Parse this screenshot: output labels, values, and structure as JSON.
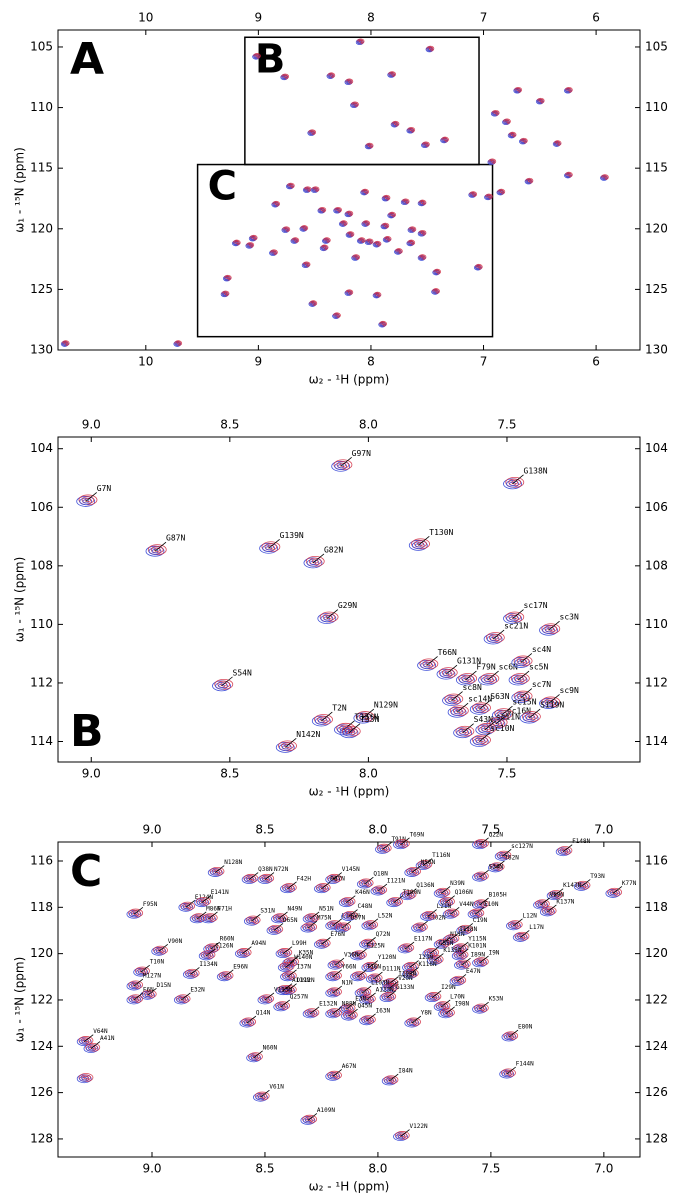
{
  "chart_data": [
    {
      "type": "contour",
      "panel_label": "A",
      "xlabel": "ω₂ - ¹H (ppm)",
      "ylabel": "ω₁ - ¹⁵N (ppm)",
      "xlim": [
        10.78,
        5.61
      ],
      "ylim": [
        103.6,
        130
      ],
      "xticks": [
        10,
        9,
        8,
        7,
        6
      ],
      "yticks": [
        105,
        110,
        115,
        120,
        125,
        130
      ],
      "colors": [
        "#3f4fd8",
        "#d0243a"
      ],
      "regions": [
        {
          "label": "B",
          "xlim": [
            9.12,
            7.04
          ],
          "ylim": [
            104.2,
            114.7
          ]
        },
        {
          "label": "C",
          "xlim": [
            9.54,
            6.92
          ],
          "ylim": [
            114.7,
            128.9
          ]
        }
      ],
      "x": [
        10.72,
        9.72,
        9.02,
        8.77,
        8.36,
        8.2,
        7.82,
        8.1,
        7.48,
        6.7,
        6.25,
        6.5,
        6.9,
        6.8,
        6.75,
        6.65,
        6.35,
        6.25,
        5.93,
        6.93,
        6.85,
        6.6,
        7.1,
        6.96,
        9.28,
        9.3,
        9.2,
        8.31,
        8.2,
        7.9,
        7.95,
        7.43,
        7.42,
        7.05,
        8.52,
        8.58,
        8.87,
        9.08,
        9.05,
        8.72,
        8.57,
        8.5,
        8.3,
        8.06,
        7.87,
        7.7,
        7.55,
        8.85,
        8.44,
        8.2,
        8.05,
        7.82,
        7.64,
        8.76,
        8.6,
        8.25,
        7.88,
        7.55,
        8.4,
        8.19,
        8.02,
        7.86,
        8.68,
        8.09,
        7.95,
        7.65,
        8.42,
        8.14,
        7.76,
        7.55,
        8.53,
        7.65,
        7.52,
        7.35,
        8.15,
        8.02,
        7.79
      ],
      "values": [
        129.5,
        129.5,
        105.8,
        107.5,
        107.4,
        107.9,
        107.3,
        104.6,
        105.2,
        108.6,
        108.6,
        109.5,
        110.5,
        111.2,
        112.3,
        112.8,
        113.0,
        115.6,
        115.8,
        114.5,
        117.0,
        116.1,
        117.2,
        117.4,
        124.1,
        125.4,
        121.2,
        127.2,
        125.3,
        127.9,
        125.5,
        125.2,
        123.6,
        123.2,
        126.2,
        123.0,
        122.0,
        121.4,
        120.8,
        116.5,
        116.8,
        116.8,
        118.5,
        117.0,
        117.5,
        117.8,
        117.9,
        118.0,
        118.5,
        118.8,
        119.6,
        118.9,
        120.1,
        120.1,
        120.0,
        119.6,
        119.8,
        120.4,
        121.0,
        120.5,
        121.1,
        120.9,
        121.0,
        121.0,
        121.3,
        121.2,
        121.6,
        122.4,
        121.9,
        122.4,
        112.1,
        111.9,
        113.1,
        112.7,
        109.8,
        113.2,
        111.4
      ]
    },
    {
      "type": "contour",
      "panel_label": "B",
      "xlabel": "ω₂ - ¹H (ppm)",
      "ylabel": "ω₁ - ¹⁵N (ppm)",
      "xlim": [
        9.12,
        7.02
      ],
      "ylim": [
        103.6,
        114.7
      ],
      "xticks": [
        {
          "value": 9,
          "label": "9.0"
        },
        8.5,
        {
          "value": 8,
          "label": "8.0"
        },
        7.5
      ],
      "yticks": [
        104,
        106,
        108,
        110,
        112,
        114
      ],
      "colors": [
        "#3f4fd8",
        "#d0243a"
      ],
      "labels": [
        "G97N",
        "G138N",
        "G7N",
        "G87N",
        "G139N",
        "G82N",
        "T130N",
        "G29N",
        "sc17N",
        "sc21N",
        "sc3N",
        "T66N",
        "G131N",
        "F79N",
        "sc6N",
        "sc4N",
        "sc5N",
        "sc7N",
        "sc9N",
        "S54N",
        "sc8N",
        "sc14N",
        "S63N",
        "sc15N",
        "sc16N",
        "S119N",
        "N129N",
        "T33*N",
        "T33N",
        "T2N",
        "N142N",
        "S43N",
        "sc11N",
        "sc10N"
      ],
      "x": [
        8.1,
        7.48,
        9.02,
        8.77,
        8.36,
        8.2,
        7.82,
        8.15,
        7.48,
        7.55,
        7.35,
        7.79,
        7.72,
        7.65,
        7.57,
        7.45,
        7.46,
        7.45,
        7.35,
        8.53,
        7.7,
        7.68,
        7.6,
        7.52,
        7.54,
        7.42,
        8.02,
        8.09,
        8.07,
        8.17,
        8.3,
        7.66,
        7.58,
        7.6
      ],
      "values": [
        104.6,
        105.2,
        105.8,
        107.5,
        107.4,
        107.9,
        107.3,
        109.8,
        109.8,
        110.5,
        110.2,
        111.4,
        111.7,
        111.9,
        111.9,
        111.3,
        111.9,
        112.5,
        112.7,
        112.1,
        112.6,
        113.0,
        112.9,
        113.1,
        113.4,
        113.2,
        113.2,
        113.6,
        113.7,
        113.3,
        114.2,
        113.7,
        113.6,
        114.0
      ]
    },
    {
      "type": "contour",
      "panel_label": "C",
      "xlabel": "ω₂ - ¹H (ppm)",
      "ylabel": "ω₁ - ¹⁵N (ppm)",
      "xlim": [
        9.416,
        6.84
      ],
      "ylim": [
        115.18,
        128.78
      ],
      "xticks": [
        {
          "value": 9,
          "label": "9.0"
        },
        8.5,
        {
          "value": 8,
          "label": "8.0"
        },
        7.5,
        {
          "value": 7,
          "label": "7.0"
        }
      ],
      "yticks": [
        116,
        118,
        120,
        122,
        124,
        126,
        128
      ],
      "colors": [
        "#3f4fd8",
        "#d0243a"
      ],
      "labels": [
        "T91N",
        "T69N",
        "Q22N",
        "sc127N",
        "F148N",
        "T116N",
        "N58N",
        "T62N",
        "N128N",
        "Q38N",
        "N72N",
        "V145N",
        "Q18N",
        "S34N",
        "N39N",
        "F42H",
        "D87N",
        "I121N",
        "Q136N",
        "Q106N",
        "T93N",
        "K77N",
        "B105H",
        "E124N",
        "E141N",
        "F95N",
        "K46N",
        "T100N",
        "K147N",
        "V59N",
        "K137N",
        "M86N",
        "F71H",
        "S31N",
        "N49N",
        "N51N",
        "L104N",
        "C48N",
        "D57N",
        "M75N",
        "D65N",
        "L52N",
        "V44N",
        "E10N",
        "K102N",
        "C19N",
        "L21N",
        "L12N",
        "L17N",
        "I118N",
        "N11N",
        "Y115N",
        "K101N",
        "R60N",
        "I126N",
        "V90N",
        "A94N",
        "L99H",
        "E76N",
        "Q72N",
        "E117N",
        "C55N",
        "K135N",
        "I9N",
        "F125N",
        "K35N",
        "W140N",
        "V36N",
        "Y120N",
        "I23N",
        "K116N",
        "I89N",
        "T10N",
        "I134N",
        "E96N",
        "I37N",
        "Y66N",
        "T16N",
        "D111N",
        "I108N",
        "V20N",
        "E47N",
        "M127N",
        "D15N",
        "F6N",
        "D112N",
        "N1N",
        "L103N",
        "A119N",
        "V113N",
        "A123N",
        "Q257N",
        "E3N",
        "G133N",
        "E32N",
        "E132N",
        "N88N",
        "Q45N",
        "I29N",
        "L70N",
        "K53N",
        "I98N",
        "I63N",
        "Y8N",
        "Q14N",
        "E80N",
        "V64N",
        "A41N",
        "N60N",
        "F144N",
        "A67N",
        "I84N",
        "V61N",
        "A109N",
        "V122N",
        null
      ],
      "x": [
        7.98,
        7.9,
        7.55,
        7.45,
        7.18,
        7.8,
        7.85,
        7.48,
        8.72,
        8.57,
        8.5,
        8.2,
        8.06,
        7.55,
        7.72,
        8.4,
        8.25,
        8.0,
        7.87,
        7.7,
        7.1,
        6.96,
        7.55,
        8.85,
        8.78,
        9.08,
        8.14,
        7.93,
        7.22,
        7.28,
        7.25,
        8.8,
        8.75,
        8.56,
        8.44,
        8.3,
        8.2,
        8.13,
        8.16,
        8.31,
        8.46,
        8.04,
        7.68,
        7.57,
        7.82,
        7.62,
        7.78,
        7.4,
        7.37,
        7.68,
        7.72,
        7.64,
        7.64,
        8.74,
        8.76,
        8.97,
        8.6,
        8.42,
        8.25,
        8.05,
        7.88,
        7.77,
        7.75,
        7.55,
        8.09,
        8.39,
        8.41,
        8.19,
        8.04,
        7.86,
        7.86,
        7.63,
        9.05,
        8.83,
        8.68,
        8.4,
        8.2,
        8.09,
        8.02,
        7.95,
        7.95,
        7.65,
        9.08,
        9.02,
        9.08,
        8.4,
        8.2,
        8.07,
        8.42,
        8.5,
        8.05,
        8.43,
        8.14,
        7.96,
        8.87,
        8.3,
        8.2,
        8.13,
        7.76,
        7.72,
        7.55,
        7.7,
        8.05,
        7.85,
        8.58,
        7.42,
        9.3,
        9.27,
        8.55,
        7.43,
        8.2,
        7.95,
        8.52,
        8.31,
        7.9,
        9.3
      ],
      "values": [
        115.5,
        115.3,
        115.3,
        115.8,
        115.6,
        116.2,
        116.5,
        116.3,
        116.5,
        116.8,
        116.8,
        116.8,
        117.0,
        116.7,
        117.4,
        117.2,
        117.2,
        117.3,
        117.5,
        117.8,
        117.1,
        117.4,
        117.9,
        118.0,
        117.8,
        118.3,
        117.8,
        117.8,
        117.5,
        117.9,
        118.2,
        118.5,
        118.5,
        118.6,
        118.5,
        118.5,
        118.8,
        118.4,
        118.9,
        118.9,
        119.0,
        118.8,
        118.3,
        118.3,
        118.9,
        119.0,
        118.4,
        118.8,
        119.3,
        119.4,
        119.6,
        119.8,
        120.1,
        119.8,
        120.1,
        119.9,
        120.0,
        120.0,
        119.6,
        119.6,
        119.8,
        120.0,
        120.3,
        120.4,
        120.1,
        120.4,
        120.6,
        120.5,
        120.6,
        120.6,
        120.9,
        120.5,
        120.8,
        120.9,
        121.0,
        121.0,
        121.0,
        121.0,
        121.1,
        121.3,
        121.5,
        121.2,
        121.4,
        121.8,
        122.0,
        121.6,
        121.7,
        121.7,
        121.6,
        122.0,
        122.0,
        122.3,
        122.4,
        121.9,
        122.0,
        122.6,
        122.6,
        122.7,
        121.9,
        122.3,
        122.4,
        122.6,
        122.9,
        123.0,
        123.0,
        123.6,
        123.8,
        124.1,
        124.5,
        125.2,
        125.3,
        125.5,
        126.2,
        127.2,
        127.9,
        125.4
      ]
    }
  ]
}
